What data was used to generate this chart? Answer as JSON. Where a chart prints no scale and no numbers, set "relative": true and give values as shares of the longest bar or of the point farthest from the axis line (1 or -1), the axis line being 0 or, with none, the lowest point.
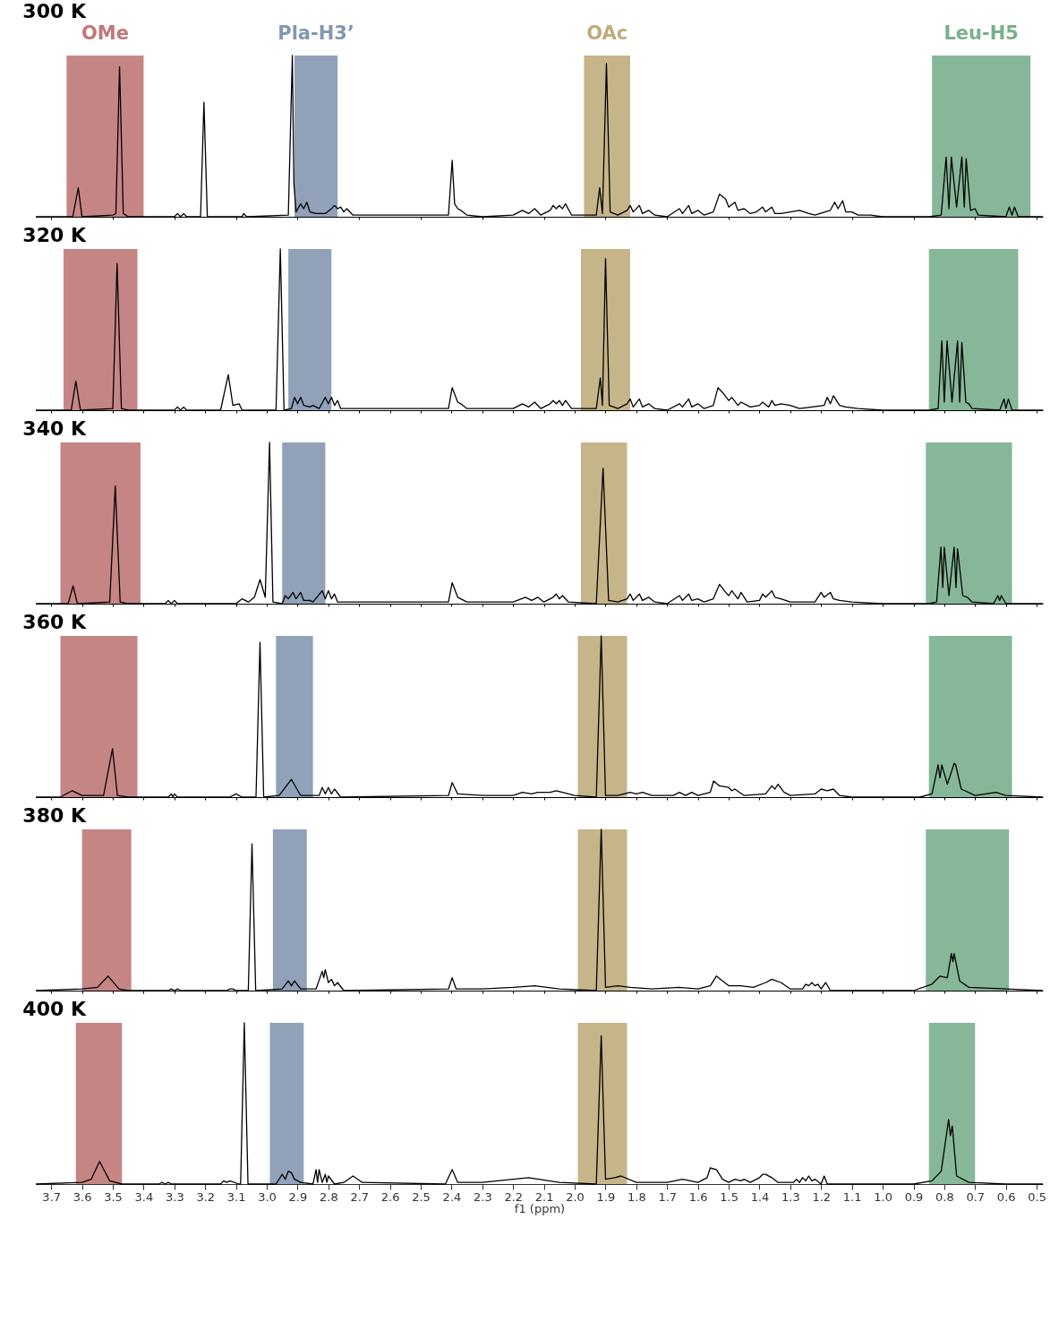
{
  "chart_data": [
    {
      "type": "line",
      "title": "300 K",
      "relative": true,
      "xlim": [
        3.75,
        0.48
      ],
      "tick_labels": false,
      "xticks": [
        3.7,
        3.6,
        3.5,
        3.4,
        3.3,
        3.2,
        3.1,
        3,
        2.9,
        2.8,
        2.7,
        2.6,
        2.5,
        2.4,
        2.3,
        2.2,
        2.1,
        2,
        1.9,
        1.8,
        1.7,
        1.6,
        1.5,
        1.4,
        1.3,
        1.2,
        1.1,
        1,
        0.9,
        0.8,
        0.7,
        0.6,
        0.5
      ],
      "x": [
        3.75,
        3.63,
        3.612,
        3.6,
        3.5,
        3.49,
        3.478,
        3.466,
        3.45,
        3.3,
        3.29,
        3.28,
        3.27,
        3.26,
        3.215,
        3.204,
        3.193,
        3.08,
        3.075,
        3.065,
        2.93,
        2.917,
        2.912,
        2.905,
        2.89,
        2.88,
        2.87,
        2.86,
        2.84,
        2.81,
        2.79,
        2.78,
        2.77,
        2.76,
        2.75,
        2.74,
        2.72,
        2.41,
        2.398,
        2.39,
        2.38,
        2.37,
        2.35,
        2.3,
        2.2,
        2.17,
        2.15,
        2.13,
        2.11,
        2.08,
        2.07,
        2.06,
        2.05,
        2.04,
        2.03,
        2.01,
        1.93,
        1.919,
        1.91,
        1.897,
        1.885,
        1.86,
        1.83,
        1.82,
        1.81,
        1.79,
        1.78,
        1.76,
        1.74,
        1.7,
        1.66,
        1.65,
        1.63,
        1.62,
        1.6,
        1.58,
        1.55,
        1.53,
        1.51,
        1.5,
        1.48,
        1.47,
        1.45,
        1.43,
        1.41,
        1.39,
        1.38,
        1.36,
        1.35,
        1.33,
        1.3,
        1.27,
        1.24,
        1.22,
        1.17,
        1.156,
        1.145,
        1.13,
        1.12,
        1.1,
        1.08,
        1.04,
        1.0,
        0.85,
        0.81,
        0.794,
        0.785,
        0.777,
        0.76,
        0.743,
        0.735,
        0.729,
        0.715,
        0.7,
        0.69,
        0.6,
        0.589,
        0.58,
        0.572,
        0.56,
        0.48
      ],
      "series": [
        {
          "color": "#000000",
          "values": [
            0,
            0,
            0.18,
            0,
            0.01,
            0.02,
            0.93,
            0.02,
            0,
            0,
            0.02,
            0,
            0.02,
            0,
            0,
            0.71,
            0,
            0,
            0.02,
            0,
            0.01,
            1,
            0.21,
            0.03,
            0.08,
            0.05,
            0.09,
            0.03,
            0.02,
            0.02,
            0.05,
            0.07,
            0.05,
            0.06,
            0.03,
            0.05,
            0.01,
            0.01,
            0.35,
            0.08,
            0.05,
            0.04,
            0.01,
            0,
            0.01,
            0.04,
            0.02,
            0.05,
            0.01,
            0.04,
            0.07,
            0.05,
            0.07,
            0.05,
            0.08,
            0.01,
            0.01,
            0.18,
            0.02,
            0.95,
            0.03,
            0.01,
            0.04,
            0.07,
            0.03,
            0.07,
            0.02,
            0.04,
            0.01,
            0,
            0.05,
            0.02,
            0.07,
            0.02,
            0.04,
            0.01,
            0.03,
            0.14,
            0.11,
            0.06,
            0.09,
            0.04,
            0.05,
            0.02,
            0.03,
            0.06,
            0.03,
            0.06,
            0.02,
            0.02,
            0.03,
            0.04,
            0.02,
            0.01,
            0.04,
            0.09,
            0.05,
            0.1,
            0.03,
            0.03,
            0.01,
            0.01,
            0,
            0,
            0.01,
            0.37,
            0.05,
            0.37,
            0.06,
            0.37,
            0.06,
            0.36,
            0.04,
            0.05,
            0.01,
            0,
            0.06,
            0.01,
            0.06,
            0,
            0
          ]
        }
      ],
      "bands": [
        {
          "axis": "x",
          "from": 3.65,
          "to": 3.4,
          "label": "OMe",
          "color": "#c07878"
        },
        {
          "axis": "x",
          "from": 2.91,
          "to": 2.77,
          "label": "Pla-H3’",
          "color": "#8497b0"
        },
        {
          "axis": "x",
          "from": 1.97,
          "to": 1.82,
          "label": "OAc",
          "color": "#bfad7c"
        },
        {
          "axis": "x",
          "from": 0.84,
          "to": 0.52,
          "label": "Leu-H5",
          "color": "#7aaf8e"
        }
      ]
    },
    {
      "type": "line",
      "title": "320 K",
      "relative": true,
      "xlim": [
        3.75,
        0.48
      ],
      "tick_labels": false,
      "xticks": [
        3.7,
        3.6,
        3.5,
        3.4,
        3.3,
        3.2,
        3.1,
        3,
        2.9,
        2.8,
        2.7,
        2.6,
        2.5,
        2.4,
        2.3,
        2.2,
        2.1,
        2,
        1.9,
        1.8,
        1.7,
        1.6,
        1.5,
        1.4,
        1.3,
        1.2,
        1.1,
        1,
        0.9,
        0.8,
        0.7,
        0.6,
        0.5
      ],
      "x": [
        3.75,
        3.635,
        3.62,
        3.605,
        3.5,
        3.486,
        3.472,
        3.45,
        3.3,
        3.29,
        3.28,
        3.27,
        3.26,
        3.15,
        3.125,
        3.11,
        3.09,
        3.08,
        2.97,
        2.956,
        2.944,
        2.92,
        2.91,
        2.9,
        2.89,
        2.88,
        2.86,
        2.85,
        2.83,
        2.81,
        2.8,
        2.79,
        2.78,
        2.77,
        2.76,
        2.41,
        2.398,
        2.38,
        2.37,
        2.35,
        2.3,
        2.2,
        2.17,
        2.15,
        2.13,
        2.11,
        2.08,
        2.07,
        2.06,
        2.05,
        2.04,
        2.03,
        2.01,
        1.93,
        1.917,
        1.91,
        1.9,
        1.888,
        1.86,
        1.83,
        1.82,
        1.81,
        1.79,
        1.78,
        1.76,
        1.74,
        1.7,
        1.66,
        1.65,
        1.63,
        1.62,
        1.6,
        1.58,
        1.55,
        1.535,
        1.52,
        1.5,
        1.49,
        1.47,
        1.46,
        1.43,
        1.4,
        1.39,
        1.37,
        1.36,
        1.35,
        1.33,
        1.3,
        1.27,
        1.19,
        1.18,
        1.17,
        1.16,
        1.14,
        1.12,
        1.08,
        1.0,
        0.85,
        0.82,
        0.808,
        0.8,
        0.791,
        0.775,
        0.757,
        0.75,
        0.743,
        0.73,
        0.72,
        0.71,
        0.62,
        0.606,
        0.6,
        0.592,
        0.58,
        0.48
      ],
      "series": [
        {
          "color": "#000000",
          "values": [
            0,
            0,
            0.18,
            0,
            0.01,
            0.91,
            0.01,
            0,
            0,
            0.02,
            0,
            0.02,
            0,
            0,
            0.22,
            0.03,
            0.04,
            0,
            0,
            1,
            0,
            0.01,
            0.08,
            0.04,
            0.08,
            0.03,
            0.02,
            0.03,
            0.01,
            0.08,
            0.04,
            0.08,
            0.03,
            0.06,
            0.01,
            0.01,
            0.14,
            0.05,
            0.04,
            0.01,
            0.01,
            0.01,
            0.04,
            0.02,
            0.05,
            0.01,
            0.04,
            0.06,
            0.04,
            0.06,
            0.03,
            0.06,
            0.01,
            0.01,
            0.2,
            0.03,
            0.94,
            0.03,
            0.01,
            0.04,
            0.07,
            0.02,
            0.07,
            0.02,
            0.04,
            0.01,
            0,
            0.04,
            0.02,
            0.07,
            0.02,
            0.04,
            0.01,
            0.03,
            0.14,
            0.11,
            0.06,
            0.08,
            0.03,
            0.05,
            0.02,
            0.03,
            0.05,
            0.02,
            0.06,
            0.03,
            0.04,
            0.03,
            0.01,
            0.03,
            0.08,
            0.04,
            0.09,
            0.03,
            0.02,
            0.01,
            0,
            0,
            0.01,
            0.43,
            0.05,
            0.43,
            0.05,
            0.43,
            0.05,
            0.42,
            0.05,
            0.04,
            0.01,
            0,
            0.07,
            0.01,
            0.07,
            0,
            0
          ]
        }
      ],
      "bands": [
        {
          "axis": "x",
          "from": 3.66,
          "to": 3.42,
          "color": "#c07878"
        },
        {
          "axis": "x",
          "from": 2.93,
          "to": 2.79,
          "color": "#8497b0"
        },
        {
          "axis": "x",
          "from": 1.98,
          "to": 1.82,
          "color": "#bfad7c"
        },
        {
          "axis": "x",
          "from": 0.85,
          "to": 0.56,
          "color": "#7aaf8e"
        }
      ]
    },
    {
      "type": "line",
      "title": "340 K",
      "relative": true,
      "xlim": [
        3.75,
        0.48
      ],
      "tick_labels": false,
      "xticks": [
        3.7,
        3.6,
        3.5,
        3.4,
        3.3,
        3.2,
        3.1,
        3,
        2.9,
        2.8,
        2.7,
        2.6,
        2.5,
        2.4,
        2.3,
        2.2,
        2.1,
        2,
        1.9,
        1.8,
        1.7,
        1.6,
        1.5,
        1.4,
        1.3,
        1.2,
        1.1,
        1,
        0.9,
        0.8,
        0.7,
        0.6,
        0.5
      ],
      "x": [
        3.75,
        3.645,
        3.629,
        3.615,
        3.51,
        3.492,
        3.476,
        3.45,
        3.33,
        3.32,
        3.31,
        3.3,
        3.29,
        3.1,
        3.08,
        3.06,
        3.04,
        3.022,
        3.005,
        2.991,
        2.98,
        2.95,
        2.94,
        2.93,
        2.915,
        2.905,
        2.89,
        2.88,
        2.86,
        2.85,
        2.82,
        2.81,
        2.8,
        2.79,
        2.78,
        2.77,
        2.41,
        2.398,
        2.38,
        2.37,
        2.35,
        2.3,
        2.2,
        2.16,
        2.14,
        2.12,
        2.1,
        2.07,
        2.06,
        2.05,
        2.04,
        2.02,
        1.93,
        1.908,
        1.89,
        1.86,
        1.83,
        1.82,
        1.81,
        1.79,
        1.78,
        1.76,
        1.74,
        1.7,
        1.66,
        1.65,
        1.63,
        1.62,
        1.6,
        1.58,
        1.55,
        1.53,
        1.51,
        1.5,
        1.49,
        1.47,
        1.46,
        1.44,
        1.4,
        1.39,
        1.38,
        1.36,
        1.35,
        1.33,
        1.3,
        1.22,
        1.2,
        1.19,
        1.17,
        1.16,
        1.14,
        1.1,
        1.0,
        0.85,
        0.825,
        0.811,
        0.805,
        0.8,
        0.785,
        0.768,
        0.762,
        0.757,
        0.74,
        0.725,
        0.71,
        0.64,
        0.626,
        0.62,
        0.615,
        0.6,
        0.48
      ],
      "series": [
        {
          "color": "#000000",
          "values": [
            0,
            0,
            0.11,
            0,
            0.01,
            0.73,
            0.01,
            0,
            0,
            0.02,
            0,
            0.02,
            0,
            0,
            0.03,
            0.01,
            0.04,
            0.15,
            0.04,
            1,
            0.01,
            0,
            0.05,
            0.03,
            0.07,
            0.03,
            0.07,
            0.02,
            0.02,
            0.01,
            0.08,
            0.03,
            0.08,
            0.03,
            0.06,
            0.01,
            0.01,
            0.13,
            0.04,
            0.03,
            0.01,
            0.01,
            0.01,
            0.04,
            0.02,
            0.04,
            0.01,
            0.04,
            0.06,
            0.03,
            0.05,
            0.01,
            0,
            0.84,
            0.02,
            0.01,
            0.03,
            0.06,
            0.02,
            0.06,
            0.02,
            0.04,
            0.01,
            0,
            0.05,
            0.02,
            0.06,
            0.02,
            0.03,
            0.01,
            0.03,
            0.12,
            0.07,
            0.05,
            0.08,
            0.03,
            0.07,
            0.01,
            0.02,
            0.06,
            0.04,
            0.08,
            0.04,
            0.03,
            0.01,
            0.01,
            0.07,
            0.04,
            0.07,
            0.03,
            0.02,
            0.01,
            0,
            0,
            0.01,
            0.35,
            0.1,
            0.35,
            0.05,
            0.35,
            0.1,
            0.34,
            0.05,
            0.04,
            0.01,
            0,
            0.05,
            0.02,
            0.05,
            0,
            0
          ]
        }
      ],
      "bands": [
        {
          "axis": "x",
          "from": 3.67,
          "to": 3.41,
          "color": "#c07878"
        },
        {
          "axis": "x",
          "from": 2.95,
          "to": 2.81,
          "color": "#8497b0"
        },
        {
          "axis": "x",
          "from": 1.98,
          "to": 1.83,
          "color": "#bfad7c"
        },
        {
          "axis": "x",
          "from": 0.86,
          "to": 0.58,
          "color": "#7aaf8e"
        }
      ]
    },
    {
      "type": "line",
      "title": "360 K",
      "relative": true,
      "xlim": [
        3.75,
        0.48
      ],
      "tick_labels": false,
      "xticks": [
        3.7,
        3.6,
        3.5,
        3.4,
        3.3,
        3.2,
        3.1,
        3,
        2.9,
        2.8,
        2.7,
        2.6,
        2.5,
        2.4,
        2.3,
        2.2,
        2.1,
        2,
        1.9,
        1.8,
        1.7,
        1.6,
        1.5,
        1.4,
        1.3,
        1.2,
        1.1,
        1,
        0.9,
        0.8,
        0.7,
        0.6,
        0.5
      ],
      "x": [
        3.75,
        3.67,
        3.632,
        3.6,
        3.53,
        3.501,
        3.485,
        3.45,
        3.32,
        3.31,
        3.305,
        3.3,
        3.29,
        3.12,
        3.1,
        3.08,
        3.035,
        3.022,
        3.01,
        2.96,
        2.92,
        2.89,
        2.83,
        2.82,
        2.81,
        2.8,
        2.79,
        2.78,
        2.76,
        2.41,
        2.398,
        2.38,
        2.3,
        2.2,
        2.17,
        2.14,
        2.12,
        2.08,
        2.06,
        2.04,
        2.0,
        1.93,
        1.914,
        1.9,
        1.86,
        1.82,
        1.8,
        1.78,
        1.75,
        1.68,
        1.66,
        1.64,
        1.62,
        1.6,
        1.56,
        1.549,
        1.53,
        1.5,
        1.49,
        1.48,
        1.45,
        1.38,
        1.36,
        1.35,
        1.34,
        1.32,
        1.3,
        1.22,
        1.2,
        1.18,
        1.16,
        1.14,
        1.1,
        0.88,
        0.84,
        0.82,
        0.814,
        0.808,
        0.79,
        0.768,
        0.763,
        0.745,
        0.7,
        0.632,
        0.6,
        0.48
      ],
      "series": [
        {
          "color": "#000000",
          "values": [
            0,
            0,
            0.04,
            0.01,
            0.01,
            0.3,
            0.01,
            0,
            0,
            0.02,
            0,
            0.02,
            0,
            0,
            0.02,
            0,
            0,
            0.96,
            0,
            0.01,
            0.11,
            0.01,
            0.01,
            0.06,
            0.02,
            0.06,
            0.02,
            0.05,
            0,
            0.01,
            0.09,
            0.02,
            0.01,
            0.01,
            0.03,
            0.02,
            0.03,
            0.03,
            0.04,
            0.03,
            0.01,
            0,
            1,
            0.01,
            0.01,
            0.03,
            0.02,
            0.03,
            0.01,
            0.01,
            0.03,
            0.01,
            0.03,
            0.01,
            0.03,
            0.1,
            0.07,
            0.06,
            0.04,
            0.05,
            0.01,
            0.02,
            0.07,
            0.05,
            0.08,
            0.03,
            0.01,
            0.02,
            0.05,
            0.04,
            0.05,
            0.01,
            0,
            0,
            0.02,
            0.2,
            0.12,
            0.2,
            0.08,
            0.21,
            0.2,
            0.05,
            0.01,
            0.03,
            0.01,
            0
          ]
        }
      ],
      "bands": [
        {
          "axis": "x",
          "from": 3.67,
          "to": 3.42,
          "color": "#c07878"
        },
        {
          "axis": "x",
          "from": 2.97,
          "to": 2.85,
          "color": "#8497b0"
        },
        {
          "axis": "x",
          "from": 1.99,
          "to": 1.83,
          "color": "#bfad7c"
        },
        {
          "axis": "x",
          "from": 0.85,
          "to": 0.58,
          "color": "#7aaf8e"
        }
      ]
    },
    {
      "type": "line",
      "title": "380 K",
      "relative": true,
      "xlim": [
        3.75,
        0.48
      ],
      "tick_labels": false,
      "xticks": [
        3.7,
        3.6,
        3.5,
        3.4,
        3.3,
        3.2,
        3.1,
        3,
        2.9,
        2.8,
        2.7,
        2.6,
        2.5,
        2.4,
        2.3,
        2.2,
        2.1,
        2,
        1.9,
        1.8,
        1.7,
        1.6,
        1.5,
        1.4,
        1.3,
        1.2,
        1.1,
        1,
        0.9,
        0.8,
        0.7,
        0.6,
        0.5
      ],
      "x": [
        3.75,
        3.6,
        3.55,
        3.515,
        3.48,
        3.45,
        3.32,
        3.31,
        3.3,
        3.29,
        3.28,
        3.13,
        3.12,
        3.11,
        3.1,
        3.06,
        3.048,
        3.036,
        2.95,
        2.93,
        2.92,
        2.91,
        2.89,
        2.84,
        2.82,
        2.815,
        2.81,
        2.8,
        2.79,
        2.78,
        2.77,
        2.75,
        2.41,
        2.398,
        2.385,
        2.3,
        2.2,
        2.13,
        2.05,
        1.93,
        1.914,
        1.9,
        1.86,
        1.82,
        1.75,
        1.66,
        1.6,
        1.56,
        1.54,
        1.52,
        1.5,
        1.46,
        1.42,
        1.38,
        1.36,
        1.33,
        1.3,
        1.26,
        1.25,
        1.24,
        1.23,
        1.22,
        1.21,
        1.2,
        1.185,
        1.17,
        0.9,
        0.84,
        0.814,
        0.79,
        0.777,
        0.772,
        0.768,
        0.75,
        0.72,
        0.6,
        0.48
      ],
      "series": [
        {
          "color": "#000000",
          "values": [
            0,
            0.01,
            0.02,
            0.09,
            0.01,
            0,
            0,
            0.01,
            0,
            0.01,
            0,
            0,
            0.01,
            0.01,
            0,
            0,
            0.91,
            0,
            0.01,
            0.06,
            0.03,
            0.06,
            0.01,
            0.01,
            0.12,
            0.08,
            0.13,
            0.05,
            0.07,
            0.03,
            0.05,
            0,
            0.01,
            0.08,
            0.01,
            0.01,
            0.02,
            0.03,
            0.01,
            0,
            1,
            0.02,
            0.03,
            0.02,
            0.01,
            0.02,
            0.01,
            0.03,
            0.09,
            0.06,
            0.03,
            0.03,
            0.02,
            0.05,
            0.07,
            0.05,
            0.01,
            0.01,
            0.04,
            0.03,
            0.05,
            0.03,
            0.04,
            0.01,
            0.05,
            0,
            0,
            0.04,
            0.09,
            0.08,
            0.23,
            0.18,
            0.23,
            0.06,
            0.02,
            0.01,
            0
          ]
        }
      ],
      "bands": [
        {
          "axis": "x",
          "from": 3.6,
          "to": 3.44,
          "color": "#c07878"
        },
        {
          "axis": "x",
          "from": 2.98,
          "to": 2.87,
          "color": "#8497b0"
        },
        {
          "axis": "x",
          "from": 1.99,
          "to": 1.83,
          "color": "#bfad7c"
        },
        {
          "axis": "x",
          "from": 0.86,
          "to": 0.59,
          "color": "#7aaf8e"
        }
      ]
    },
    {
      "type": "line",
      "title": "400 K",
      "relative": true,
      "xlim": [
        3.75,
        0.48
      ],
      "tick_labels": "x",
      "xlabel": "f1 (ppm)",
      "xticks": [
        3.7,
        3.6,
        3.5,
        3.4,
        3.3,
        3.2,
        3.1,
        {
          "value": 3,
          "label": "3.0"
        },
        2.9,
        2.8,
        2.7,
        2.6,
        2.5,
        2.4,
        2.3,
        2.2,
        2.1,
        {
          "value": 2,
          "label": "2.0"
        },
        1.9,
        1.8,
        1.7,
        1.6,
        1.5,
        1.4,
        1.3,
        1.2,
        1.1,
        {
          "value": 1,
          "label": "1.0"
        },
        0.9,
        0.8,
        0.7,
        0.6,
        0.5
      ],
      "x": [
        3.75,
        3.6,
        3.57,
        3.543,
        3.51,
        3.47,
        3.35,
        3.34,
        3.33,
        3.32,
        3.31,
        3.15,
        3.14,
        3.13,
        3.12,
        3.09,
        3.085,
        3.073,
        3.061,
        2.97,
        2.95,
        2.94,
        2.93,
        2.92,
        2.91,
        2.89,
        2.85,
        2.84,
        2.835,
        2.83,
        2.82,
        2.81,
        2.805,
        2.8,
        2.78,
        2.75,
        2.72,
        2.69,
        2.42,
        2.398,
        2.38,
        2.3,
        2.25,
        2.15,
        2.05,
        1.93,
        1.914,
        1.9,
        1.87,
        1.85,
        1.8,
        1.7,
        1.65,
        1.6,
        1.57,
        1.56,
        1.54,
        1.52,
        1.5,
        1.48,
        1.46,
        1.45,
        1.43,
        1.4,
        1.39,
        1.38,
        1.36,
        1.34,
        1.29,
        1.28,
        1.27,
        1.26,
        1.25,
        1.24,
        1.23,
        1.22,
        1.2,
        1.19,
        1.18,
        0.9,
        0.84,
        0.81,
        0.786,
        0.78,
        0.774,
        0.76,
        0.72,
        0.6,
        0.48
      ],
      "series": [
        {
          "color": "#000000",
          "values": [
            0,
            0.01,
            0.03,
            0.14,
            0.02,
            0,
            0,
            0.01,
            0,
            0.01,
            0,
            0,
            0.02,
            0.01,
            0.02,
            0,
            0,
            1,
            0,
            0,
            0.06,
            0.03,
            0.08,
            0.07,
            0.03,
            0.01,
            0,
            0.09,
            0.01,
            0.09,
            0.01,
            0.06,
            0.01,
            0.05,
            0,
            0.01,
            0.05,
            0.01,
            0,
            0.09,
            0.01,
            0.01,
            0.02,
            0.04,
            0.01,
            0,
            0.92,
            0.03,
            0.04,
            0.05,
            0.01,
            0.01,
            0.03,
            0.01,
            0.04,
            0.1,
            0.09,
            0.03,
            0.01,
            0.03,
            0.02,
            0.03,
            0.01,
            0.04,
            0.06,
            0.06,
            0.04,
            0.01,
            0.01,
            0.03,
            0.01,
            0.04,
            0.02,
            0.05,
            0.02,
            0.03,
            0,
            0.05,
            0,
            0,
            0.02,
            0.08,
            0.4,
            0.3,
            0.36,
            0.05,
            0.01,
            0,
            0
          ]
        }
      ],
      "bands": [
        {
          "axis": "x",
          "from": 3.62,
          "to": 3.47,
          "color": "#c07878"
        },
        {
          "axis": "x",
          "from": 2.99,
          "to": 2.88,
          "color": "#8497b0"
        },
        {
          "axis": "x",
          "from": 1.99,
          "to": 1.83,
          "color": "#bfad7c"
        },
        {
          "axis": "x",
          "from": 0.85,
          "to": 0.7,
          "color": "#7aaf8e"
        }
      ]
    }
  ]
}
